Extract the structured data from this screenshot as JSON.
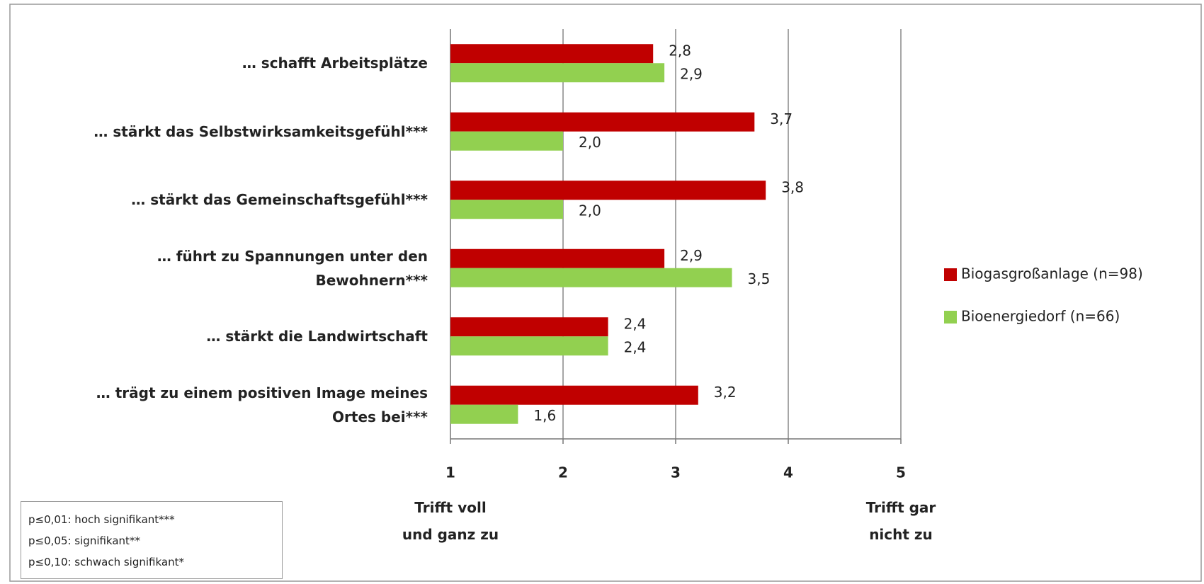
{
  "chart_data": {
    "type": "bar",
    "orientation": "horizontal",
    "categories": [
      "… schafft  Arbeitsplätze",
      "… stärkt das Selbstwirksamkeitsgefühl***",
      "… stärkt das Gemeinschaftsgefühl***",
      "… führt zu Spannungen unter den\nBewohnern***",
      "… stärkt die Landwirtschaft",
      "… trägt zu einem positiven Image meines\nOrtes bei***"
    ],
    "series": [
      {
        "name": "Biogasgroßanlage (n=98)",
        "color": "#c00000",
        "values": [
          2.8,
          3.7,
          3.8,
          2.9,
          2.4,
          3.2
        ],
        "value_labels": [
          "2,8",
          "3,7",
          "3,8",
          "2,9",
          "2,4",
          "3,2"
        ]
      },
      {
        "name": "Bioenergiedorf (n=66)",
        "color": "#92d050",
        "values": [
          2.9,
          2.0,
          2.0,
          3.5,
          2.4,
          1.6
        ],
        "value_labels": [
          "2,9",
          "2,0",
          "2,0",
          "3,5",
          "2,4",
          "1,6"
        ]
      }
    ],
    "xlim": [
      1,
      5
    ],
    "xticks": [
      1,
      2,
      3,
      4,
      5
    ],
    "grid": true,
    "legend": "right",
    "axis_end_labels": [
      "Trifft voll\nund ganz zu",
      "Trifft gar\nnicht zu"
    ],
    "notes": [
      "p≤0,01: hoch signifikant***",
      "p≤0,05: signifikant**",
      "p≤0,10: schwach signifikant*"
    ]
  }
}
